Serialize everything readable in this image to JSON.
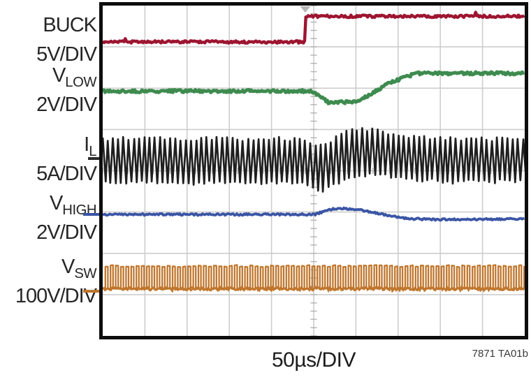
{
  "figure": {
    "timebase_label": "50µs/DIV",
    "figure_id": "7871 TA01b"
  },
  "channels": [
    {
      "name_main": "BUCK",
      "name_sub": "",
      "scale": "5V/DIV",
      "color": "#9d1531"
    },
    {
      "name_main": "V",
      "name_sub": "LOW",
      "scale": "2V/DIV",
      "color": "#3e8b4f"
    },
    {
      "name_main": "I",
      "name_sub": "L",
      "scale": "5A/DIV",
      "color": "#1f1f1f"
    },
    {
      "name_main": "V",
      "name_sub": "HIGH",
      "scale": "2V/DIV",
      "color": "#3a55a5"
    },
    {
      "name_main": "V",
      "name_sub": "SW",
      "scale": "100V/DIV",
      "color": "#c0762c"
    }
  ],
  "chart_data": {
    "type": "line",
    "subtype": "oscilloscope",
    "title": "",
    "timebase": "50µs/DIV",
    "x_axis": {
      "divisions": 10,
      "units_per_div": "50µs"
    },
    "y_axis": {
      "divisions": 8
    },
    "grid": {
      "major": true,
      "color": "#cdcdcd",
      "tick_color": "#b6b6b6",
      "minor_ticks_per_div": 5,
      "minor_ticks_on_center_axes": true
    },
    "trigger": {
      "x_div": 4.8,
      "marker_color": "#b5b5b5"
    },
    "border_color": "#0d0d0d",
    "series": [
      {
        "name": "BUCK",
        "scale_per_div": "5V",
        "color": "#9d1531",
        "waveform": "step",
        "keypoints_div": [
          [
            0,
            0.88
          ],
          [
            4.785,
            0.88
          ],
          [
            4.815,
            0.26
          ],
          [
            10,
            0.26
          ]
        ],
        "description": "command signal: low until t≈4.8 div, then steps high ≈0.62 div (≈3V)"
      },
      {
        "name": "VLOW",
        "scale_per_div": "2V",
        "color": "#3e8b4f",
        "waveform": "analog",
        "keypoints_div": [
          [
            0,
            2.07
          ],
          [
            4.9,
            2.07
          ],
          [
            5.05,
            2.14
          ],
          [
            5.35,
            2.34
          ],
          [
            5.93,
            2.34
          ],
          [
            6.17,
            2.25
          ],
          [
            6.75,
            1.9
          ],
          [
            7.25,
            1.7
          ],
          [
            7.5,
            1.64
          ],
          [
            10,
            1.64
          ]
        ],
        "description": "dips ≈0.27 div after step, recovers to ≈0.43 div above initial level"
      },
      {
        "name": "IL",
        "scale_per_div": "5A",
        "color": "#1f1f1f",
        "waveform": "triangle_ripple",
        "period_div": 0.123,
        "center_keypoints_div": [
          [
            0,
            3.76
          ],
          [
            4.8,
            3.76
          ],
          [
            5.1,
            3.94
          ],
          [
            5.35,
            3.86
          ],
          [
            5.68,
            3.66
          ],
          [
            6.0,
            3.56
          ],
          [
            6.35,
            3.56
          ],
          [
            6.85,
            3.63
          ],
          [
            7.5,
            3.71
          ],
          [
            8.3,
            3.75
          ],
          [
            10,
            3.75
          ]
        ],
        "amplitude_keypoints_div": [
          [
            0,
            0.53
          ],
          [
            4.8,
            0.53
          ],
          [
            5.1,
            0.56
          ],
          [
            6.0,
            0.56
          ],
          [
            6.8,
            0.52
          ],
          [
            10,
            0.51
          ]
        ],
        "description": "continuous inductor ripple ≈1.06 div p-p; sags then swells after the step"
      },
      {
        "name": "VHIGH",
        "scale_per_div": "2V",
        "color": "#3a55a5",
        "waveform": "analog",
        "keypoints_div": [
          [
            0,
            5.06
          ],
          [
            5.02,
            5.06
          ],
          [
            5.21,
            5.0
          ],
          [
            5.48,
            4.92
          ],
          [
            5.93,
            4.92
          ],
          [
            6.34,
            5.0
          ],
          [
            6.84,
            5.09
          ],
          [
            7.25,
            5.16
          ],
          [
            7.83,
            5.18
          ],
          [
            10,
            5.17
          ]
        ],
        "description": "small bump up ≈0.14 div after step, settles ≈0.11 div lower"
      },
      {
        "name": "VSW",
        "scale_per_div": "100V",
        "color": "#c0762c",
        "waveform": "pwm",
        "period_div": 0.1225,
        "duty": 0.48,
        "base_div": 6.86,
        "top_div": 6.31,
        "description": "continuous switching-node pulse train ≈0.55 div high"
      }
    ],
    "reference_ticks": [
      {
        "channel": "IL",
        "y_div": 3.705,
        "color": "#2a2a2a"
      },
      {
        "channel": "VHIGH",
        "y_div": 5.06,
        "color": "#3a55a5"
      },
      {
        "channel": "VSW",
        "y_div": 6.92,
        "color": "#c0762c"
      }
    ]
  }
}
